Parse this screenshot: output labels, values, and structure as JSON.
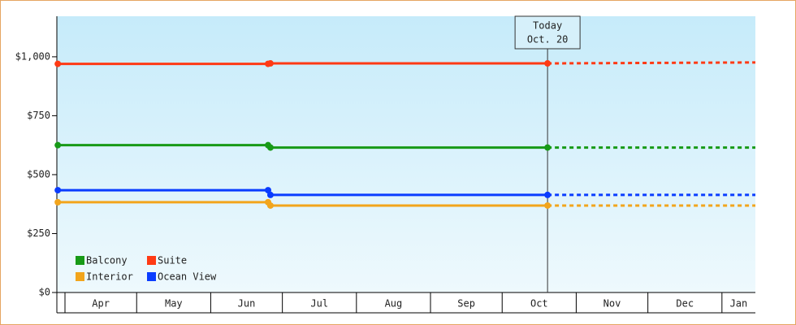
{
  "chart_data": {
    "type": "line",
    "ylim": [
      0,
      1172
    ],
    "yticks": [
      {
        "value": 0,
        "label": "$0"
      },
      {
        "value": 250,
        "label": "$250"
      },
      {
        "value": 500,
        "label": "$500"
      },
      {
        "value": 750,
        "label": "$750"
      },
      {
        "value": 1000,
        "label": "$1,000"
      }
    ],
    "xlim": [
      87.6,
      380
    ],
    "xticks": [
      {
        "value": 91,
        "label": "Apr"
      },
      {
        "value": 121,
        "label": "May"
      },
      {
        "value": 152,
        "label": "Jun"
      },
      {
        "value": 182,
        "label": "Jul"
      },
      {
        "value": 213,
        "label": "Aug"
      },
      {
        "value": 244,
        "label": "Sep"
      },
      {
        "value": 274,
        "label": "Oct"
      },
      {
        "value": 305,
        "label": "Nov"
      },
      {
        "value": 335,
        "label": "Dec"
      },
      {
        "value": 366,
        "label": "Jan"
      }
    ],
    "x": [
      88,
      176,
      177,
      293
    ],
    "forecast_x": [
      293,
      380
    ],
    "today": {
      "x": 293,
      "lines": [
        "Today",
        "Oct. 20"
      ]
    },
    "series": [
      {
        "name": "Balcony",
        "color": "#179a17",
        "values": [
          625,
          625,
          615,
          615
        ],
        "forecast": [
          615,
          615
        ]
      },
      {
        "name": "Suite",
        "color": "#ff3a14",
        "values": [
          970,
          970,
          972,
          972
        ],
        "forecast": [
          972,
          976
        ]
      },
      {
        "name": "Interior",
        "color": "#f2a51c",
        "values": [
          383,
          383,
          369,
          369
        ],
        "forecast": [
          369,
          369
        ]
      },
      {
        "name": "Ocean View",
        "color": "#0a3cff",
        "values": [
          434,
          434,
          414,
          414
        ],
        "forecast": [
          414,
          414
        ]
      }
    ]
  }
}
